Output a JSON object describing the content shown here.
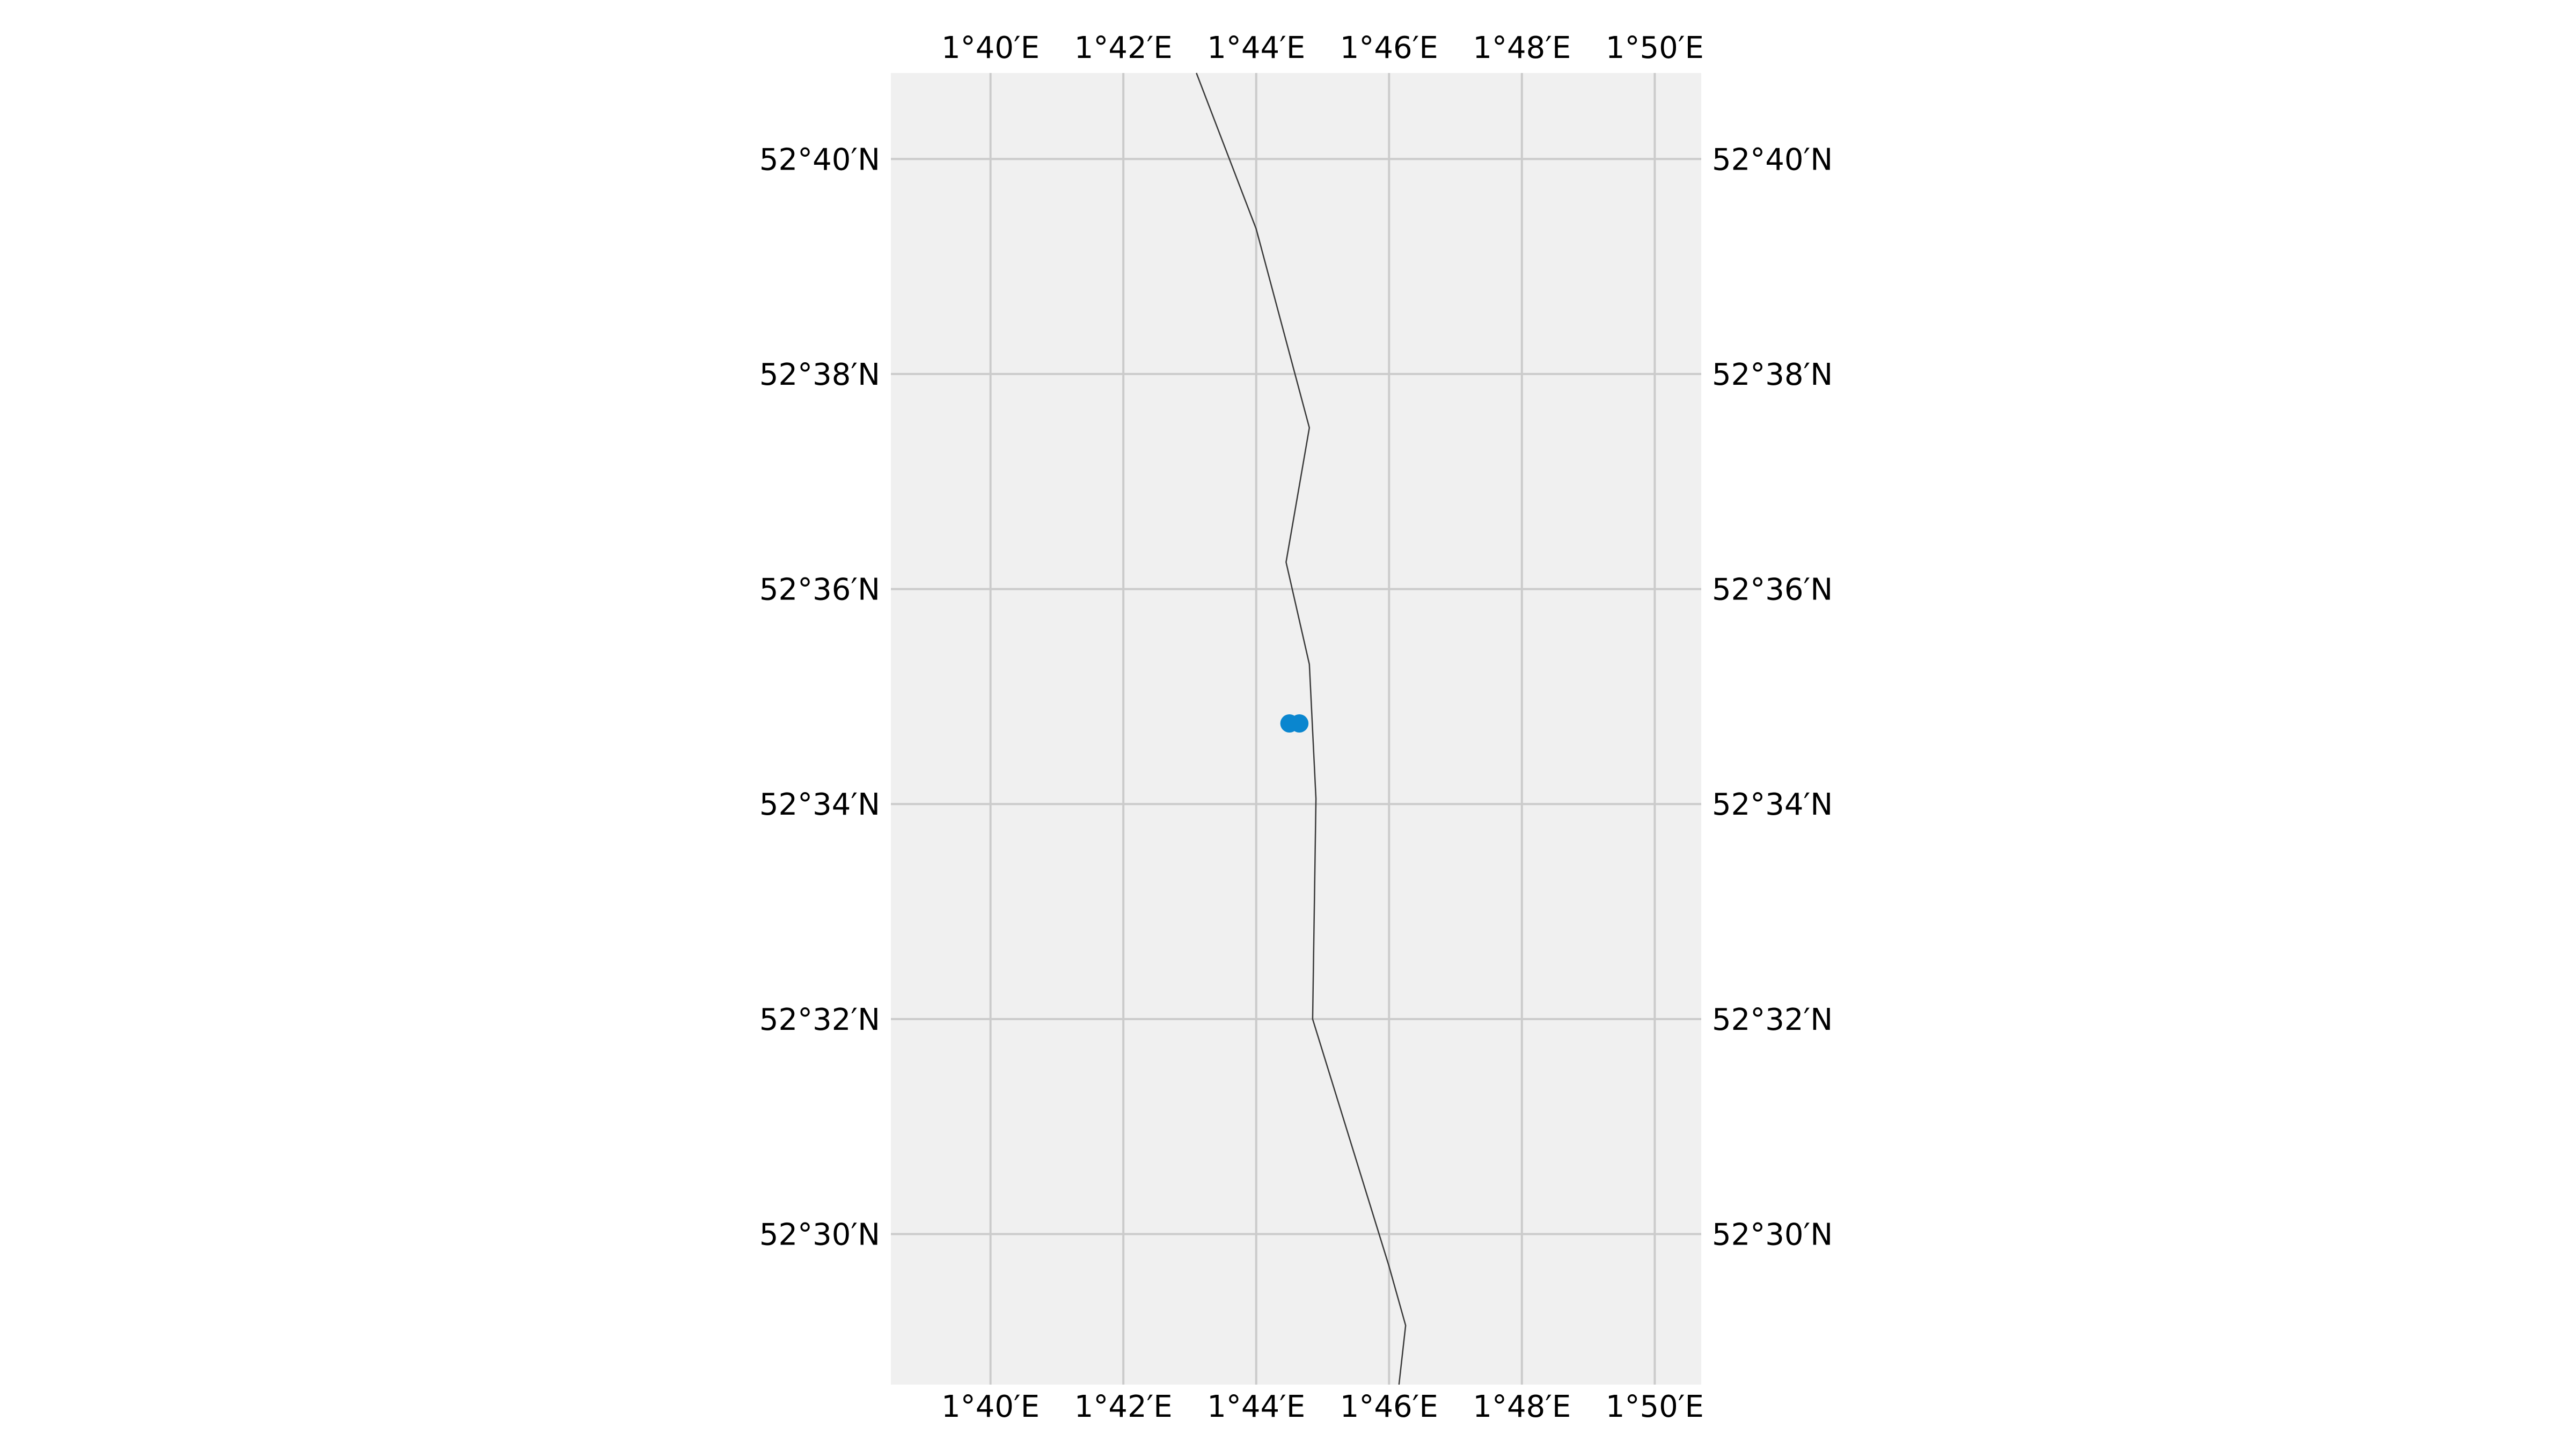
{
  "map": {
    "background_color": "#f0f0f0",
    "grid_color": "#cbcbcb",
    "coastline_color": "#3a3a3a",
    "point_color": "#0a86cf",
    "lon_range_minutes": [
      98.5,
      110.7
    ],
    "lat_range_minutes": [
      3148.6,
      3160.8
    ],
    "lon_ticks": [
      {
        "minutes": 100,
        "label": "1°40′E"
      },
      {
        "minutes": 102,
        "label": "1°42′E"
      },
      {
        "minutes": 104,
        "label": "1°44′E"
      },
      {
        "minutes": 106,
        "label": "1°46′E"
      },
      {
        "minutes": 108,
        "label": "1°48′E"
      },
      {
        "minutes": 110,
        "label": "1°50′E"
      }
    ],
    "lat_ticks": [
      {
        "minutes": 3160,
        "label": "52°40′N"
      },
      {
        "minutes": 3158,
        "label": "52°38′N"
      },
      {
        "minutes": 3156,
        "label": "52°36′N"
      },
      {
        "minutes": 3154,
        "label": "52°34′N"
      },
      {
        "minutes": 3152,
        "label": "52°32′N"
      },
      {
        "minutes": 3150,
        "label": "52°30′N"
      }
    ],
    "coastline": [
      [
        103.1,
        3160.8
      ],
      [
        104.0,
        3159.35
      ],
      [
        104.8,
        3157.5
      ],
      [
        104.45,
        3156.25
      ],
      [
        104.8,
        3155.3
      ],
      [
        104.9,
        3154.05
      ],
      [
        104.85,
        3152.0
      ],
      [
        106.0,
        3149.7
      ],
      [
        106.25,
        3149.15
      ],
      [
        106.15,
        3148.6
      ]
    ],
    "points": [
      [
        104.5,
        3154.75
      ],
      [
        104.65,
        3154.75
      ]
    ]
  }
}
